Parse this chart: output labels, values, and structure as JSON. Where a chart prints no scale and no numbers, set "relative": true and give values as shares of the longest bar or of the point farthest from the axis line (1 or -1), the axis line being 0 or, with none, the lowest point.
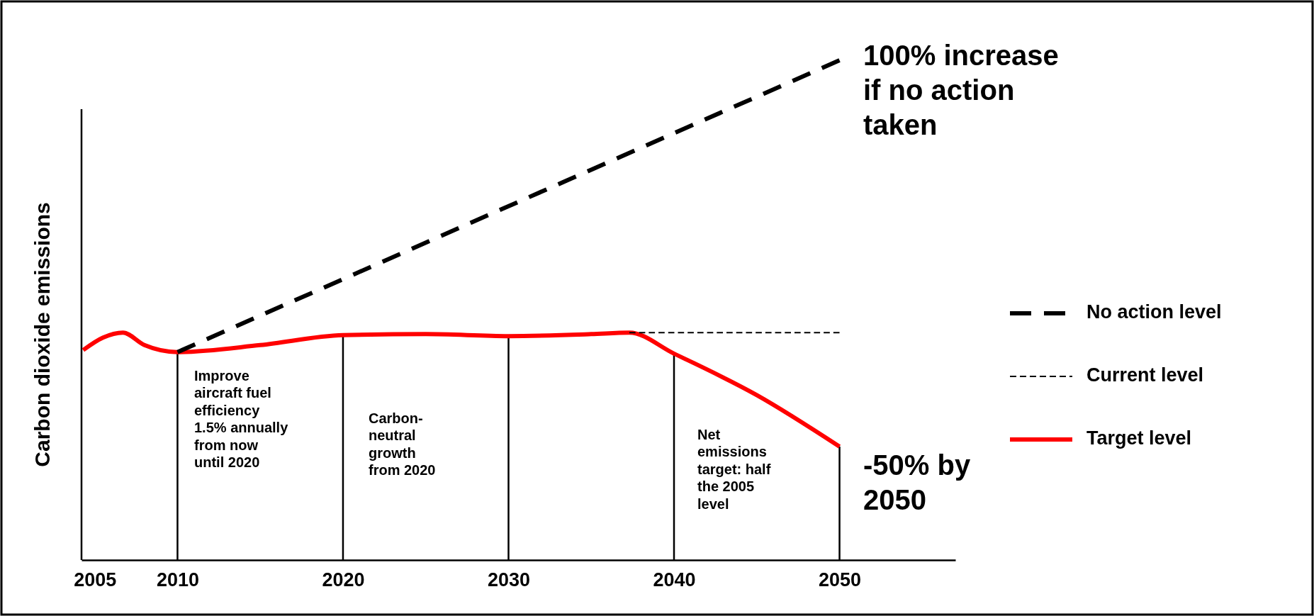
{
  "chart_data": {
    "type": "line",
    "relative": true,
    "ylabel": "Carbon dioxide emissions",
    "xlim": [
      2004.2,
      2057
    ],
    "xticks": [
      2005,
      2010,
      2020,
      2030,
      2040,
      2050
    ],
    "legend": "right",
    "series": [
      {
        "name": "No action level",
        "color": "#000000",
        "line_style": "dashed",
        "x": [
          2010,
          2050
        ],
        "values": [
          0.416,
          1
        ]
      },
      {
        "name": "Current level",
        "color": "#000000",
        "line_style": "dotted",
        "x": [
          2037.3,
          2050
        ],
        "values": [
          0.455,
          0.455
        ]
      },
      {
        "name": "Target level",
        "color": "#ff0000",
        "line_style": "solid",
        "x": [
          2004.3,
          2005.5,
          2006.7,
          2008,
          2010,
          2015,
          2020,
          2025,
          2030,
          2035,
          2037.3,
          2040,
          2045,
          2050
        ],
        "values": [
          0.42,
          0.445,
          0.455,
          0.43,
          0.416,
          0.43,
          0.45,
          0.452,
          0.448,
          0.452,
          0.455,
          0.413,
          0.33,
          0.227
        ]
      }
    ],
    "ref_lines": [
      {
        "axis": "x",
        "value": 2010
      },
      {
        "axis": "x",
        "value": 2020
      },
      {
        "axis": "x",
        "value": 2030
      },
      {
        "axis": "x",
        "value": 2040
      },
      {
        "axis": "x",
        "value": 2050
      }
    ],
    "annotations": [
      "Improve aircraft fuel efficiency 1.5% annually from now until 2020",
      "Carbon-neutral growth from 2020",
      "Net emissions target: half the 2005 level",
      "100% increase if no action taken",
      "-50% by 2050"
    ]
  }
}
